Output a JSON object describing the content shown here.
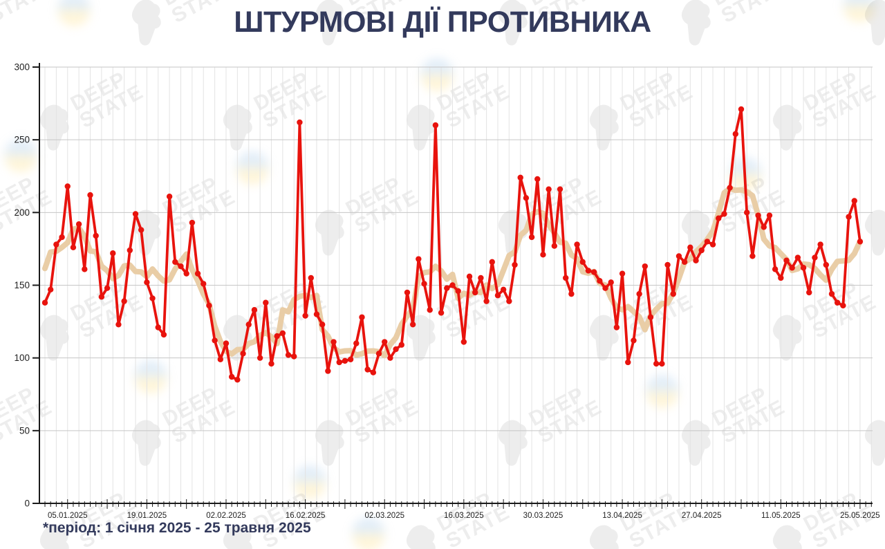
{
  "title": "ШТУРМОВІ ДІЇ ПРОТИВНИКА",
  "footnote": "*період: 1 січня 2025 - 25 травня 2025",
  "watermark": {
    "line1": "DEEP",
    "line2": "STATE"
  },
  "colors": {
    "title_navy": "#333a5c",
    "series_red": "#e8130d",
    "series_tan": "#e9cda6",
    "grid_vertical": "#e3e3e3",
    "grid_horizontal": "#c6c6c6",
    "axis_black": "#1a1a1a",
    "tick_label": "#222222",
    "blob_blue": "#6fa8dc",
    "blob_yellow": "#ffd966",
    "background": "#ffffff"
  },
  "chart_data": {
    "type": "line",
    "title": "ШТУРМОВІ ДІЇ ПРОТИВНИКА",
    "xlabel": "",
    "ylabel": "",
    "ylim": [
      0,
      300
    ],
    "y_ticks": [
      0,
      50,
      100,
      150,
      200,
      250,
      300
    ],
    "grid": "horizontal 50-step gray lines, vertical light lines every 2 days",
    "legend_position": "none",
    "x_start_date": "01.01.2025",
    "x_end_date": "25.05.2025",
    "x_ticks": [
      {
        "day": 4,
        "label": "05.01.2025"
      },
      {
        "day": 18,
        "label": "19.01.2025"
      },
      {
        "day": 32,
        "label": "02.02.2025"
      },
      {
        "day": 46,
        "label": "16.02.2025"
      },
      {
        "day": 60,
        "label": "02.03.2025"
      },
      {
        "day": 74,
        "label": "16.03.2025"
      },
      {
        "day": 88,
        "label": "30.03.2025"
      },
      {
        "day": 102,
        "label": "13.04.2025"
      },
      {
        "day": 116,
        "label": "27.04.2025"
      },
      {
        "day": 130,
        "label": "11.05.2025"
      },
      {
        "day": 144,
        "label": "25.05.2025"
      }
    ],
    "series": [
      {
        "name": "daily-assault-actions",
        "color": "#e8130d",
        "markers": true,
        "values": [
          138,
          147,
          178,
          183,
          218,
          176,
          192,
          161,
          212,
          184,
          142,
          148,
          172,
          123,
          139,
          174,
          199,
          188,
          152,
          141,
          121,
          116,
          211,
          166,
          163,
          158,
          193,
          158,
          151,
          136,
          112,
          99,
          110,
          87,
          85,
          103,
          123,
          133,
          100,
          138,
          96,
          115,
          117,
          102,
          101,
          262,
          129,
          155,
          130,
          123,
          91,
          111,
          97,
          98,
          99,
          110,
          128,
          92,
          90,
          103,
          111,
          100,
          106,
          109,
          145,
          123,
          168,
          151,
          133,
          260,
          131,
          148,
          150,
          146,
          111,
          156,
          145,
          155,
          139,
          166,
          143,
          147,
          139,
          164,
          224,
          210,
          183,
          223,
          171,
          216,
          177,
          216,
          155,
          144,
          178,
          166,
          160,
          159,
          153,
          148,
          152,
          121,
          158,
          97,
          112,
          144,
          163,
          128,
          96,
          96,
          164,
          144,
          170,
          166,
          176,
          167,
          174,
          180,
          178,
          196,
          199,
          217,
          254,
          271,
          200,
          170,
          198,
          190,
          198,
          161,
          155,
          167,
          162,
          169,
          162,
          145,
          169,
          178,
          164,
          144,
          138,
          136,
          197,
          208,
          180
        ]
      },
      {
        "name": "smoothed-trend",
        "color": "#e9cda6",
        "markers": false,
        "derived": "7-day centered moving average of daily-assault-actions"
      }
    ]
  }
}
